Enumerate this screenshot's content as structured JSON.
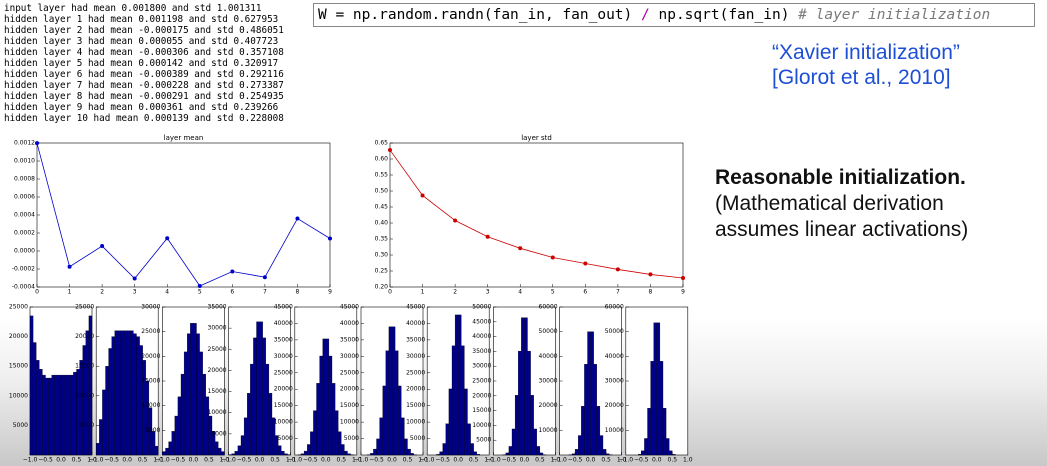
{
  "log_lines": [
    "input layer had mean 0.001800 and std 1.001311",
    "hidden layer 1 had mean 0.001198 and std 0.627953",
    "hidden layer 2 had mean -0.000175 and std 0.486051",
    "hidden layer 3 had mean 0.000055 and std 0.407723",
    "hidden layer 4 had mean -0.000306 and std 0.357108",
    "hidden layer 5 had mean 0.000142 and std 0.320917",
    "hidden layer 6 had mean -0.000389 and std 0.292116",
    "hidden layer 7 had mean -0.000228 and std 0.273387",
    "hidden layer 8 had mean -0.000291 and std 0.254935",
    "hidden layer 9 had mean 0.000361 and std 0.239266",
    "hidden layer 10 had mean 0.000139 and std 0.228008"
  ],
  "code": [
    "W = np.random.randn(fan_in, fan_out) ",
    "/",
    " np.sqrt(fan_in) ",
    "# layer initialization"
  ],
  "citation": [
    "“Xavier initialization”",
    "[Glorot et al., 2010]"
  ],
  "note": [
    "Reasonable initialization.",
    "(Mathematical derivation",
    "assumes linear activations)"
  ],
  "chart_data": [
    {
      "type": "line",
      "title": "layer mean",
      "x": [
        0,
        1,
        2,
        3,
        4,
        5,
        6,
        7,
        8,
        9
      ],
      "values": [
        0.001198,
        -0.000175,
        5.5e-05,
        -0.000306,
        0.000142,
        -0.000389,
        -0.000228,
        -0.000291,
        0.000361,
        0.000139
      ],
      "color": "#0000cc",
      "xlim": [
        0,
        9
      ],
      "xticks": [
        0,
        1,
        2,
        3,
        4,
        5,
        6,
        7,
        8,
        9
      ],
      "ylim": [
        -0.0004,
        0.0012
      ],
      "yticks": [
        -0.0004,
        -0.0002,
        {
          "value": 0,
          "label": "0.0000"
        },
        0.0002,
        0.0004,
        0.0006,
        0.0008,
        {
          "value": 0.001,
          "label": "0.0010"
        },
        0.0012
      ]
    },
    {
      "type": "line",
      "title": "layer std",
      "x": [
        0,
        1,
        2,
        3,
        4,
        5,
        6,
        7,
        8,
        9
      ],
      "values": [
        0.627953,
        0.486051,
        0.407723,
        0.357108,
        0.320917,
        0.292116,
        0.273387,
        0.254935,
        0.239266,
        0.228008
      ],
      "color": "#cc0000",
      "xlim": [
        0,
        9
      ],
      "xticks": [
        0,
        1,
        2,
        3,
        4,
        5,
        6,
        7,
        8,
        9
      ],
      "ylim": [
        0.2,
        0.65
      ],
      "yticks": [
        {
          "value": 0.2,
          "label": "0.20"
        },
        0.25,
        {
          "value": 0.3,
          "label": "0.30"
        },
        0.35,
        {
          "value": 0.4,
          "label": "0.40"
        },
        0.45,
        {
          "value": 0.5,
          "label": "0.50"
        },
        0.55,
        {
          "value": 0.6,
          "label": "0.60"
        },
        0.65
      ]
    },
    {
      "type": "histogram",
      "color": "#00008b",
      "bins": [
        -1,
        -0.9,
        -0.8,
        -0.7,
        -0.6,
        -0.5,
        -0.4,
        -0.3,
        -0.2,
        -0.1,
        0,
        0.1,
        0.2,
        0.3,
        0.4,
        0.5,
        0.6,
        0.7,
        0.8,
        0.9,
        1
      ],
      "counts": [
        23500,
        19000,
        16000,
        14500,
        13500,
        13000,
        13000,
        13500,
        13500,
        13500,
        13500,
        13500,
        13500,
        13500,
        14000,
        14500,
        16000,
        18500,
        21000,
        23500
      ],
      "xlim": [
        -1,
        1
      ],
      "xticks": [
        {
          "value": -1,
          "label": "−1.0"
        },
        {
          "value": -0.5,
          "label": "−0.5"
        },
        {
          "value": 0,
          "label": "0.0"
        },
        0.5,
        {
          "value": 1,
          "label": "1.0"
        }
      ],
      "ylim": [
        0,
        25000
      ],
      "yticks": [
        5000,
        10000,
        15000,
        20000,
        25000
      ]
    },
    {
      "type": "histogram",
      "color": "#00008b",
      "bins": [
        -1,
        -0.9,
        -0.8,
        -0.7,
        -0.6,
        -0.5,
        -0.4,
        -0.3,
        -0.2,
        -0.1,
        0,
        0.1,
        0.2,
        0.3,
        0.4,
        0.5,
        0.6,
        0.7,
        0.8,
        0.9,
        1
      ],
      "counts": [
        2000,
        6000,
        11000,
        15000,
        18000,
        20000,
        21000,
        21000,
        21000,
        21000,
        21000,
        21000,
        20500,
        20000,
        18500,
        16000,
        12500,
        8000,
        4000,
        1500
      ],
      "xlim": [
        -1,
        1
      ],
      "xticks": [
        {
          "value": -1,
          "label": "−1.0"
        },
        {
          "value": -0.5,
          "label": "−0.5"
        },
        {
          "value": 0,
          "label": "0.0"
        },
        0.5,
        {
          "value": 1,
          "label": "1.0"
        }
      ],
      "ylim": [
        0,
        25000
      ],
      "yticks": [
        5000,
        10000,
        15000,
        20000,
        25000
      ]
    },
    {
      "type": "histogram",
      "color": "#00008b",
      "bins": [
        -1,
        -0.9,
        -0.8,
        -0.7,
        -0.6,
        -0.5,
        -0.4,
        -0.3,
        -0.2,
        -0.1,
        0,
        0.1,
        0.2,
        0.3,
        0.4,
        0.5,
        0.6,
        0.7,
        0.8,
        0.9,
        1
      ],
      "counts": [
        700,
        1400,
        2700,
        4800,
        7900,
        11800,
        16400,
        20900,
        24600,
        26700,
        26700,
        24600,
        20900,
        16400,
        11800,
        7900,
        4800,
        2700,
        1400,
        700
      ],
      "xlim": [
        -1,
        1
      ],
      "xticks": [
        {
          "value": -1,
          "label": "−1.0"
        },
        {
          "value": -0.5,
          "label": "−0.5"
        },
        {
          "value": 0,
          "label": "0.0"
        },
        0.5,
        {
          "value": 1,
          "label": "1.0"
        }
      ],
      "ylim": [
        0,
        30000
      ],
      "yticks": [
        5000,
        10000,
        15000,
        20000,
        25000,
        30000
      ]
    },
    {
      "type": "histogram",
      "color": "#00008b",
      "bins": [
        -1,
        -0.9,
        -0.8,
        -0.7,
        -0.6,
        -0.5,
        -0.4,
        -0.3,
        -0.2,
        -0.1,
        0,
        0.1,
        0.2,
        0.3,
        0.4,
        0.5,
        0.6,
        0.7,
        0.8,
        0.9,
        1
      ],
      "counts": [
        100,
        300,
        900,
        2200,
        4600,
        8800,
        14600,
        21500,
        27700,
        31500,
        31500,
        27700,
        21500,
        14600,
        8800,
        4600,
        2200,
        900,
        300,
        100
      ],
      "xlim": [
        -1,
        1
      ],
      "xticks": [
        {
          "value": -1,
          "label": "−1.0"
        },
        {
          "value": -0.5,
          "label": "−0.5"
        },
        {
          "value": 0,
          "label": "0.0"
        },
        0.5,
        {
          "value": 1,
          "label": "1.0"
        }
      ],
      "ylim": [
        0,
        35000
      ],
      "yticks": [
        5000,
        10000,
        15000,
        20000,
        25000,
        30000,
        35000
      ]
    },
    {
      "type": "histogram",
      "color": "#00008b",
      "bins": [
        -1,
        -0.9,
        -0.8,
        -0.7,
        -0.6,
        -0.5,
        -0.4,
        -0.3,
        -0.2,
        -0.1,
        0,
        0.1,
        0.2,
        0.3,
        0.4,
        0.5,
        0.6,
        0.7,
        0.8,
        0.9,
        1
      ],
      "counts": [
        0,
        100,
        400,
        1200,
        3200,
        7100,
        13500,
        21800,
        30100,
        35300,
        35300,
        30100,
        21800,
        13500,
        7100,
        3200,
        1200,
        400,
        100,
        0
      ],
      "xlim": [
        -1,
        1
      ],
      "xticks": [
        {
          "value": -1,
          "label": "−1.0"
        },
        {
          "value": -0.5,
          "label": "−0.5"
        },
        {
          "value": 0,
          "label": "0.0"
        },
        0.5,
        {
          "value": 1,
          "label": "1.0"
        }
      ],
      "ylim": [
        0,
        45000
      ],
      "yticks": [
        5000,
        10000,
        15000,
        20000,
        25000,
        30000,
        35000,
        40000,
        45000
      ]
    },
    {
      "type": "histogram",
      "color": "#00008b",
      "bins": [
        -1,
        -0.9,
        -0.8,
        -0.7,
        -0.6,
        -0.5,
        -0.4,
        -0.3,
        -0.2,
        -0.1,
        0,
        0.1,
        0.2,
        0.3,
        0.4,
        0.5,
        0.6,
        0.7,
        0.8,
        0.9,
        1
      ],
      "counts": [
        0,
        0,
        100,
        500,
        1800,
        4900,
        11300,
        21000,
        31700,
        39000,
        39000,
        31700,
        21000,
        11300,
        4900,
        1800,
        500,
        100,
        0,
        0
      ],
      "xlim": [
        -1,
        1
      ],
      "xticks": [
        {
          "value": -1,
          "label": "−1.0"
        },
        {
          "value": -0.5,
          "label": "−0.5"
        },
        {
          "value": 0,
          "label": "0.0"
        },
        0.5,
        {
          "value": 1,
          "label": "1.0"
        }
      ],
      "ylim": [
        0,
        45000
      ],
      "yticks": [
        5000,
        10000,
        15000,
        20000,
        25000,
        30000,
        35000,
        40000,
        45000
      ]
    },
    {
      "type": "histogram",
      "color": "#00008b",
      "bins": [
        -1,
        -0.9,
        -0.8,
        -0.7,
        -0.6,
        -0.5,
        -0.4,
        -0.3,
        -0.2,
        -0.1,
        0,
        0.1,
        0.2,
        0.3,
        0.4,
        0.5,
        0.6,
        0.7,
        0.8,
        0.9,
        1
      ],
      "counts": [
        0,
        0,
        0,
        200,
        1000,
        3500,
        9500,
        20100,
        33200,
        42600,
        42600,
        33200,
        20100,
        9500,
        3500,
        1000,
        200,
        0,
        0,
        0
      ],
      "xlim": [
        -1,
        1
      ],
      "xticks": [
        {
          "value": -1,
          "label": "−1.0"
        },
        {
          "value": -0.5,
          "label": "−0.5"
        },
        {
          "value": 0,
          "label": "0.0"
        },
        0.5,
        {
          "value": 1,
          "label": "1.0"
        }
      ],
      "ylim": [
        0,
        45000
      ],
      "yticks": [
        5000,
        10000,
        15000,
        20000,
        25000,
        30000,
        35000,
        40000,
        45000
      ]
    },
    {
      "type": "histogram",
      "color": "#00008b",
      "bins": [
        -1,
        -0.9,
        -0.8,
        -0.7,
        -0.6,
        -0.5,
        -0.4,
        -0.3,
        -0.2,
        -0.1,
        0,
        0.1,
        0.2,
        0.3,
        0.4,
        0.5,
        0.6,
        0.7,
        0.8,
        0.9,
        1
      ],
      "counts": [
        0,
        0,
        0,
        100,
        700,
        2900,
        8800,
        20200,
        35100,
        46400,
        46400,
        35100,
        20200,
        8800,
        2900,
        700,
        100,
        0,
        0,
        0
      ],
      "xlim": [
        -1,
        1
      ],
      "xticks": [
        {
          "value": -1,
          "label": "−1.0"
        },
        {
          "value": -0.5,
          "label": "−0.5"
        },
        {
          "value": 0,
          "label": "0.0"
        },
        0.5,
        {
          "value": 1,
          "label": "1.0"
        }
      ],
      "ylim": [
        0,
        50000
      ],
      "yticks": [
        5000,
        10000,
        15000,
        20000,
        25000,
        30000,
        35000,
        40000,
        45000,
        50000
      ]
    },
    {
      "type": "histogram",
      "color": "#00008b",
      "bins": [
        -1,
        -0.9,
        -0.8,
        -0.7,
        -0.6,
        -0.5,
        -0.4,
        -0.3,
        -0.2,
        -0.1,
        0,
        0.1,
        0.2,
        0.3,
        0.4,
        0.5,
        0.6,
        0.7,
        0.8,
        0.9,
        1
      ],
      "counts": [
        0,
        0,
        0,
        100,
        500,
        2300,
        7900,
        19800,
        36800,
        50000,
        50000,
        36800,
        19800,
        7900,
        2300,
        500,
        100,
        0,
        0,
        0
      ],
      "xlim": [
        -1,
        1
      ],
      "xticks": [
        {
          "value": -1,
          "label": "−1.0"
        },
        {
          "value": -0.5,
          "label": "−0.5"
        },
        {
          "value": 0,
          "label": "0.0"
        },
        0.5,
        {
          "value": 1,
          "label": "1.0"
        }
      ],
      "ylim": [
        0,
        60000
      ],
      "yticks": [
        10000,
        20000,
        30000,
        40000,
        50000,
        60000
      ]
    },
    {
      "type": "histogram",
      "color": "#00008b",
      "bins": [
        -1,
        -0.9,
        -0.8,
        -0.7,
        -0.6,
        -0.5,
        -0.4,
        -0.3,
        -0.2,
        -0.1,
        0,
        0.1,
        0.2,
        0.3,
        0.4,
        0.5,
        0.6,
        0.7,
        0.8,
        0.9,
        1
      ],
      "counts": [
        0,
        0,
        0,
        0,
        300,
        1700,
        6700,
        19000,
        38000,
        53600,
        53600,
        38000,
        19000,
        6700,
        1700,
        300,
        0,
        0,
        0,
        0
      ],
      "xlim": [
        -1,
        1
      ],
      "xticks": [
        {
          "value": -1,
          "label": "−1.0"
        },
        {
          "value": -0.5,
          "label": "−0.5"
        },
        {
          "value": 0,
          "label": "0.0"
        },
        0.5,
        {
          "value": 1,
          "label": "1.0"
        }
      ],
      "ylim": [
        0,
        60000
      ],
      "yticks": [
        10000,
        20000,
        30000,
        40000,
        50000,
        60000
      ]
    }
  ]
}
